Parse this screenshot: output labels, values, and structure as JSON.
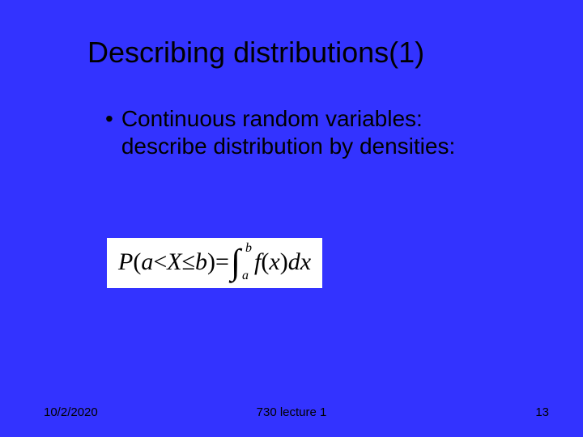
{
  "slide": {
    "background_color": "#3333ff",
    "title": "Describing distributions(1)",
    "title_color": "#000000",
    "title_fontsize": 36,
    "bullet": {
      "text": "Continuous random variables: describe distribution by densities:",
      "marker": "•",
      "fontsize": 28,
      "color": "#000000"
    },
    "formula": {
      "lhs_P": "P",
      "lhs_open": "(",
      "lhs_a": "a",
      "lhs_lt": " < ",
      "lhs_X": "X",
      "lhs_le": " ≤ ",
      "lhs_b": "b",
      "lhs_close": ")",
      "eq": " = ",
      "int_symbol": "∫",
      "int_lower": "a",
      "int_upper": "b",
      "f": "f",
      "open2": "(",
      "x": "x",
      "close2": ")",
      "dx": "dx",
      "box_bg": "#ffffff",
      "text_color": "#000000",
      "fontsize": 30
    },
    "footer": {
      "date": "10/2/2020",
      "center": "730 lecture 1",
      "page": "13",
      "fontsize": 15,
      "color": "#000000"
    }
  }
}
